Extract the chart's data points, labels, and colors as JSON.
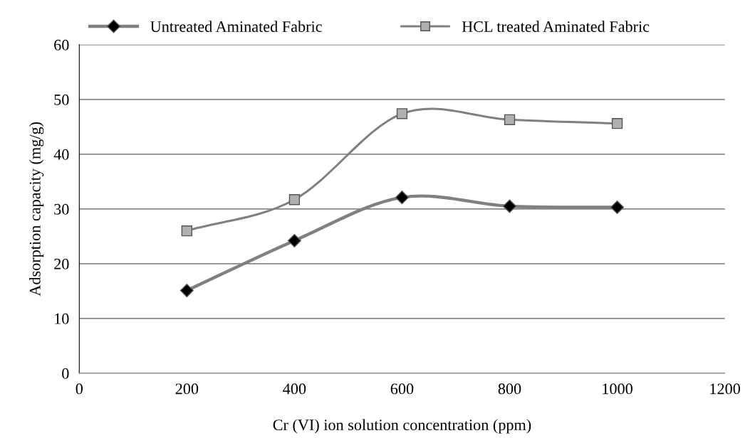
{
  "chart_data": {
    "type": "line",
    "xlabel": "Cr (VI) ion solution concentration (ppm)",
    "ylabel": "Adsorption capacity (mg/g)",
    "x": [
      200,
      400,
      600,
      800,
      1000
    ],
    "series": [
      {
        "name": "Untreated Aminated Fabric",
        "color": "#808080",
        "marker": "diamond",
        "values": [
          15.1,
          24.2,
          32.1,
          30.5,
          30.3
        ]
      },
      {
        "name": "HCL treated Aminated Fabric",
        "color": "#808080",
        "marker": "square",
        "values": [
          26,
          31.7,
          47.4,
          46.3,
          45.6
        ]
      }
    ],
    "xlim": [
      0,
      1200
    ],
    "xticks": [
      0,
      200,
      400,
      600,
      800,
      1000,
      1200
    ],
    "ylim": [
      0,
      60
    ],
    "yticks": [
      0,
      10,
      20,
      30,
      40,
      50,
      60
    ],
    "grid": "y",
    "legend": "top"
  }
}
